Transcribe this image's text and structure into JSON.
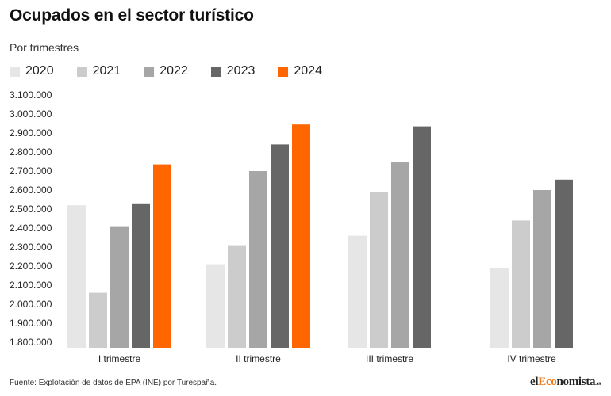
{
  "chart_data": {
    "type": "bar",
    "title": "Ocupados en el sector turístico",
    "subtitle": "Por trimestres",
    "categories": [
      "I trimestre",
      "II trimestre",
      "III trimestre",
      "IV trimestre"
    ],
    "series": [
      {
        "name": "2020",
        "color": "#e6e6e6",
        "values": [
          2520000,
          2210000,
          2360000,
          2190000
        ]
      },
      {
        "name": "2021",
        "color": "#cccccc",
        "values": [
          2060000,
          2310000,
          2590000,
          2440000
        ]
      },
      {
        "name": "2022",
        "color": "#a6a6a6",
        "values": [
          2410000,
          2700000,
          2750000,
          2600000
        ]
      },
      {
        "name": "2023",
        "color": "#666666",
        "values": [
          2530000,
          2840000,
          2935000,
          2655000
        ]
      },
      {
        "name": "2024",
        "color": "#ff6600",
        "values": [
          2735000,
          2945000,
          null,
          null
        ]
      }
    ],
    "yticks": [
      "1.800.000",
      "1.900.000",
      "2.000.000",
      "2.100.000",
      "2.200.000",
      "2.300.000",
      "2.400.000",
      "2.500.000",
      "2.600.000",
      "2.700.000",
      "2.800.000",
      "2.900.000",
      "3.000.000",
      "3.100.000"
    ],
    "ylim": [
      1800000,
      3100000
    ],
    "xlabel": "",
    "ylabel": "",
    "grid": false,
    "legend": "top-left"
  },
  "source": "Fuente: Explotación de datos de EPA (INE) por Turespaña.",
  "brand": {
    "part1": "el",
    "accent": "Eco",
    "part2": "nomista",
    "tld": ".es"
  }
}
